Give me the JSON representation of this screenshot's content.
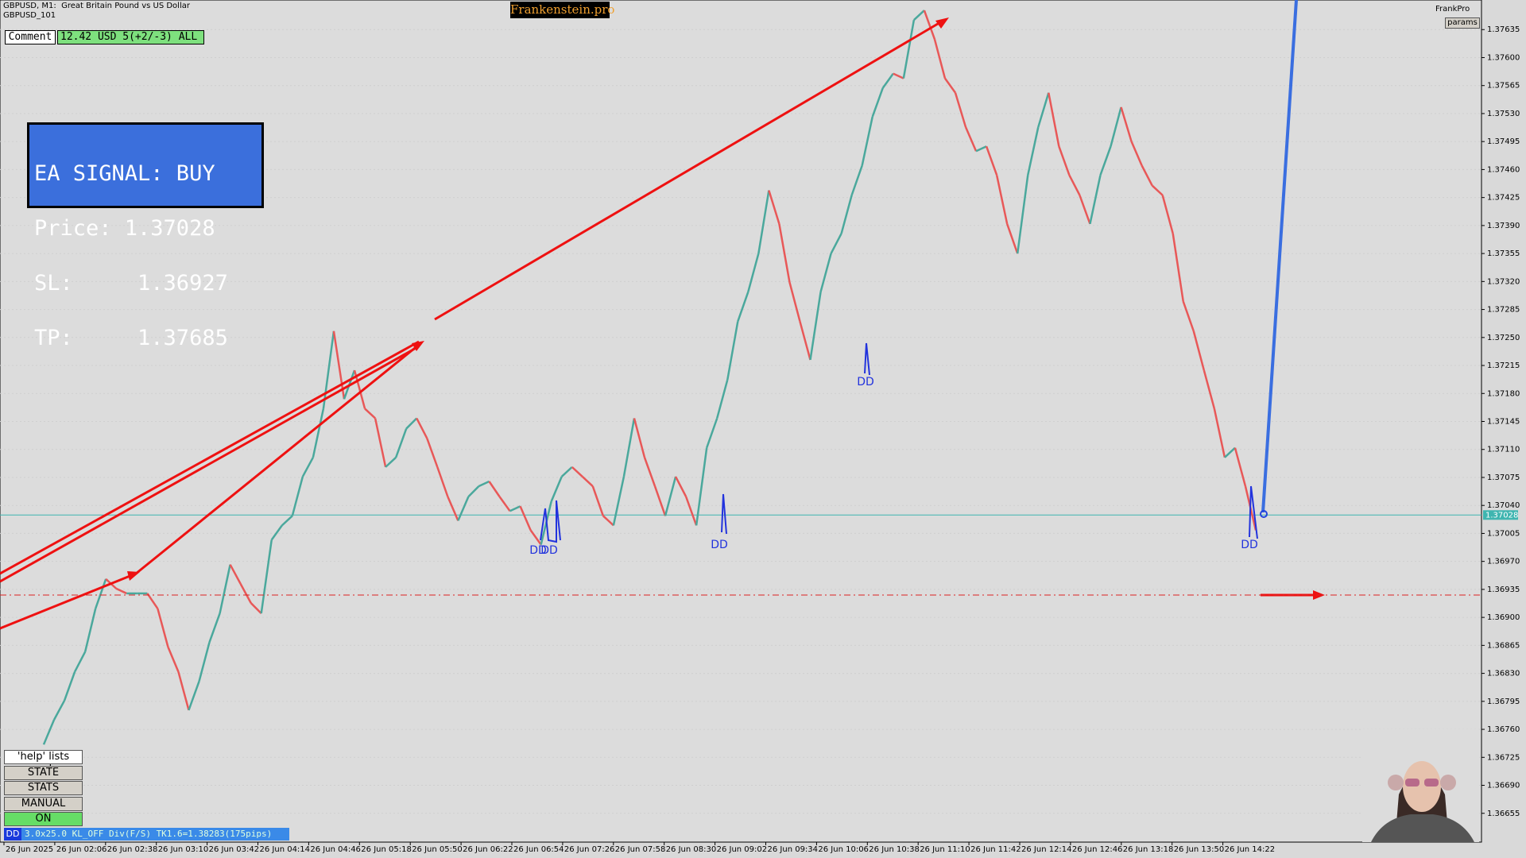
{
  "header": {
    "symbol": "GBPUSD, M1:  Great Britain Pound vs US Dollar",
    "account": "GBPUSD_101",
    "brand": "Frankenstein.pro",
    "user": "FrankPro",
    "params": "params"
  },
  "comment": {
    "button": "Comment",
    "text": "12.42 USD 5(+2/-3) ALL"
  },
  "signal": {
    "title": "EA SIGNAL: BUY",
    "price": "Price: 1.37028",
    "sl": "SL:     1.36927",
    "tp": "TP:     1.37685"
  },
  "buttons": [
    "'help' lists cmds",
    "STATE",
    "STATS",
    "MANUAL",
    "ON"
  ],
  "status": {
    "tag": "DD",
    "text": "3.0x25.0 KL_OFF Div(F/S) TK1.6=1.38283(175pips)"
  },
  "annotations": [
    "DD",
    "DD",
    "DD",
    "DD",
    "DD"
  ],
  "chart": {
    "ylim": [
      1.36619,
      1.37672
    ],
    "current_price": {
      "value": 1.37028,
      "label": "1.37028"
    },
    "yticks": [
      {
        "value": 1.37635,
        "label": "1.37635"
      },
      {
        "value": 1.376,
        "label": "1.37600"
      },
      {
        "value": 1.37565,
        "label": "1.37565"
      },
      {
        "value": 1.3753,
        "label": "1.37530"
      },
      {
        "value": 1.37495,
        "label": "1.37495"
      },
      {
        "value": 1.3746,
        "label": "1.37460"
      },
      {
        "value": 1.37425,
        "label": "1.37425"
      },
      {
        "value": 1.3739,
        "label": "1.37390"
      },
      {
        "value": 1.37355,
        "label": "1.37355"
      },
      {
        "value": 1.3732,
        "label": "1.37320"
      },
      {
        "value": 1.37285,
        "label": "1.37285"
      },
      {
        "value": 1.3725,
        "label": "1.37250"
      },
      {
        "value": 1.37215,
        "label": "1.37215"
      },
      {
        "value": 1.3718,
        "label": "1.37180"
      },
      {
        "value": 1.37145,
        "label": "1.37145"
      },
      {
        "value": 1.3711,
        "label": "1.37110"
      },
      {
        "value": 1.37075,
        "label": "1.37075"
      },
      {
        "value": 1.3704,
        "label": "1.37040"
      },
      {
        "value": 1.37005,
        "label": "1.37005"
      },
      {
        "value": 1.3697,
        "label": "1.36970"
      },
      {
        "value": 1.36935,
        "label": "1.36935"
      },
      {
        "value": 1.369,
        "label": "1.36900"
      },
      {
        "value": 1.36865,
        "label": "1.36865"
      },
      {
        "value": 1.3683,
        "label": "1.36830"
      },
      {
        "value": 1.36795,
        "label": "1.36795"
      },
      {
        "value": 1.3676,
        "label": "1.36760"
      },
      {
        "value": 1.36725,
        "label": "1.36725"
      },
      {
        "value": 1.3669,
        "label": "1.36690"
      },
      {
        "value": 1.36655,
        "label": "1.36655"
      }
    ],
    "xlabels": [
      "26 Jun 2025",
      "26 Jun 02:06",
      "26 Jun 02:38",
      "26 Jun 03:10",
      "26 Jun 03:42",
      "26 Jun 04:14",
      "26 Jun 04:46",
      "26 Jun 05:18",
      "26 Jun 05:50",
      "26 Jun 06:22",
      "26 Jun 06:54",
      "26 Jun 07:26",
      "26 Jun 07:58",
      "26 Jun 08:30",
      "26 Jun 09:02",
      "26 Jun 09:34",
      "26 Jun 10:06",
      "26 Jun 10:38",
      "26 Jun 11:10",
      "26 Jun 11:42",
      "26 Jun 12:14",
      "26 Jun 12:46",
      "26 Jun 13:18",
      "26 Jun 13:50",
      "26 Jun 14:22"
    ],
    "close": [
      1.36741,
      1.36772,
      1.36796,
      1.36832,
      1.36857,
      1.36911,
      1.36948,
      1.36936,
      1.3693,
      1.3693,
      1.3693,
      1.36911,
      1.36863,
      1.36832,
      1.36784,
      1.3682,
      1.36869,
      1.36905,
      1.36966,
      1.36942,
      1.36918,
      1.36905,
      1.36997,
      1.37015,
      1.37027,
      1.37076,
      1.371,
      1.37161,
      1.37258,
      1.37173,
      1.37209,
      1.37161,
      1.37149,
      1.37088,
      1.371,
      1.37136,
      1.37149,
      1.37124,
      1.37088,
      1.37051,
      1.37021,
      1.37051,
      1.37064,
      1.3707,
      1.37051,
      1.37033,
      1.37039,
      1.37009,
      1.36991,
      1.37045,
      1.37076,
      1.37088,
      1.37076,
      1.37064,
      1.37027,
      1.37015,
      1.37076,
      1.37149,
      1.371,
      1.37064,
      1.37027,
      1.37076,
      1.37051,
      1.37015,
      1.37112,
      1.37149,
      1.37197,
      1.3727,
      1.37307,
      1.37355,
      1.37434,
      1.37392,
      1.37319,
      1.3727,
      1.37222,
      1.37307,
      1.37355,
      1.3738,
      1.37428,
      1.37465,
      1.37526,
      1.37562,
      1.3758,
      1.37574,
      1.37647,
      1.37659,
      1.37623,
      1.37574,
      1.37556,
      1.37513,
      1.37483,
      1.37489,
      1.37453,
      1.37392,
      1.37355,
      1.37453,
      1.37513,
      1.37556,
      1.37489,
      1.37453,
      1.37428,
      1.37392,
      1.37453,
      1.37489,
      1.37538,
      1.37495,
      1.37465,
      1.3744,
      1.37428,
      1.3738,
      1.37295,
      1.37258,
      1.37209,
      1.37161,
      1.371,
      1.37112,
      1.37064,
      1.37009
    ]
  }
}
